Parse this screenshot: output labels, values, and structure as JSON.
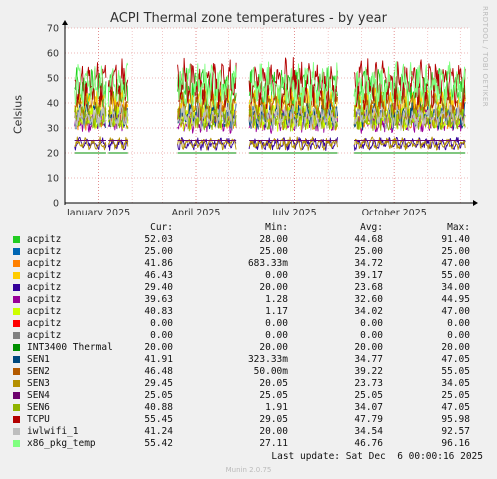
{
  "chart_data": {
    "type": "line",
    "title": "ACPI Thermal zone temperatures - by year",
    "ylabel": "Celsius",
    "side_label": "RRDTOOL / TOBI OETIKER",
    "ylim": [
      0,
      70
    ],
    "yticks": [
      0,
      10,
      20,
      30,
      40,
      50,
      60,
      70
    ],
    "x_range": [
      "2024-12-01",
      "2025-12-10"
    ],
    "x_ticks": [
      {
        "date": "2025-01-01",
        "label": "January 2025"
      },
      {
        "date": "2025-04-01",
        "label": "April 2025"
      },
      {
        "date": "2025-07-01",
        "label": "July 2025"
      },
      {
        "date": "2025-10-01",
        "label": "October 2025"
      }
    ],
    "grid": true,
    "segments": [
      [
        "2024-12-10",
        "2025-01-08"
      ],
      [
        "2025-01-10",
        "2025-01-28"
      ],
      [
        "2025-03-15",
        "2025-05-08"
      ],
      [
        "2025-05-20",
        "2025-08-10"
      ],
      [
        "2025-08-25",
        "2025-12-06"
      ]
    ],
    "columns": [
      "Cur:",
      "Min:",
      "Avg:",
      "Max:"
    ],
    "series": [
      {
        "name": "acpitz",
        "color": "#22cc22",
        "values": [
          "52.03",
          "28.00",
          "44.68",
          "91.40"
        ]
      },
      {
        "name": "acpitz",
        "color": "#0066b3",
        "values": [
          "25.00",
          "25.00",
          "25.00",
          "25.00"
        ]
      },
      {
        "name": "acpitz",
        "color": "#ff8000",
        "values": [
          "41.86",
          "683.33m",
          "34.72",
          "47.00"
        ]
      },
      {
        "name": "acpitz",
        "color": "#ffcc00",
        "values": [
          "46.43",
          "0.00",
          "39.17",
          "55.00"
        ]
      },
      {
        "name": "acpitz",
        "color": "#330099",
        "values": [
          "29.40",
          "20.00",
          "23.68",
          "34.00"
        ]
      },
      {
        "name": "acpitz",
        "color": "#990099",
        "values": [
          "39.63",
          "1.28",
          "32.60",
          "44.95"
        ]
      },
      {
        "name": "acpitz",
        "color": "#ccff00",
        "values": [
          "40.83",
          "1.17",
          "34.02",
          "47.00"
        ]
      },
      {
        "name": "acpitz",
        "color": "#ff0000",
        "values": [
          "0.00",
          "0.00",
          "0.00",
          "0.00"
        ]
      },
      {
        "name": "acpitz",
        "color": "#808080",
        "values": [
          "0.00",
          "0.00",
          "0.00",
          "0.00"
        ]
      },
      {
        "name": "INT3400 Thermal",
        "color": "#008f00",
        "values": [
          "20.00",
          "20.00",
          "20.00",
          "20.00"
        ]
      },
      {
        "name": "SEN1",
        "color": "#00487d",
        "values": [
          "41.91",
          "323.33m",
          "34.77",
          "47.05"
        ]
      },
      {
        "name": "SEN2",
        "color": "#b35a00",
        "values": [
          "46.48",
          "50.00m",
          "39.22",
          "55.05"
        ]
      },
      {
        "name": "SEN3",
        "color": "#b38f00",
        "values": [
          "29.45",
          "20.05",
          "23.73",
          "34.05"
        ]
      },
      {
        "name": "SEN4",
        "color": "#6b006b",
        "values": [
          "25.05",
          "25.05",
          "25.05",
          "25.05"
        ]
      },
      {
        "name": "SEN6",
        "color": "#8fb300",
        "values": [
          "40.88",
          "1.91",
          "34.07",
          "47.05"
        ]
      },
      {
        "name": "TCPU",
        "color": "#b30000",
        "values": [
          "55.45",
          "29.05",
          "47.79",
          "95.98"
        ]
      },
      {
        "name": "iwlwifi_1",
        "color": "#bebebe",
        "values": [
          "41.24",
          "20.00",
          "34.54",
          "92.57"
        ]
      },
      {
        "name": "x86_pkg_temp",
        "color": "#80ff80",
        "values": [
          "55.42",
          "27.11",
          "46.76",
          "96.16"
        ]
      }
    ]
  },
  "footer": {
    "last_update": "Last update: Sat Dec  6 00:00:16 2025",
    "munin": "Munin 2.0.75"
  }
}
